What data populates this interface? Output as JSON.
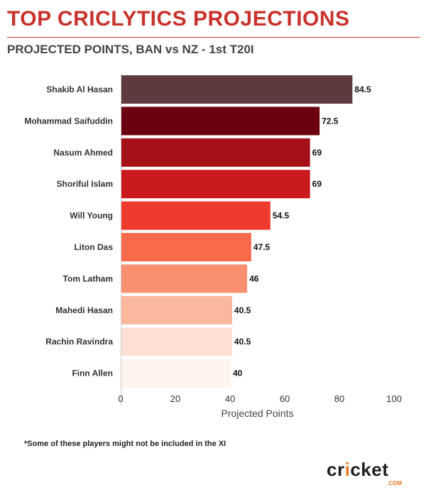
{
  "header": {
    "title": "TOP CRICLYTICS PROJECTIONS",
    "subtitle": "PROJECTED POINTS, BAN vs NZ - 1st T20I"
  },
  "footnote": "*Some of these players might not be included in the XI",
  "logo": {
    "text_before": "cr",
    "text_dot": "i",
    "text_after": "cket",
    "domain": ".COM"
  },
  "chart_data": {
    "type": "bar",
    "orientation": "horizontal",
    "categories": [
      "Shakib Al Hasan",
      "Mohammad Saifuddin",
      "Nasum Ahmed",
      "Shoriful Islam",
      "Will Young",
      "Liton Das",
      "Tom Latham",
      "Mahedi Hasan",
      "Rachin Ravindra",
      "Finn Allen"
    ],
    "values": [
      84.5,
      72.5,
      69,
      69,
      54.5,
      47.5,
      46,
      40.5,
      40.5,
      40
    ],
    "data_labels": [
      "84.5",
      "72.5",
      "69",
      "69",
      "54.5",
      "47.5",
      "46",
      "40.5",
      "40.5",
      "40"
    ],
    "colors": [
      "#5e3a3e",
      "#6b0010",
      "#a51019",
      "#cb1a1e",
      "#ee3b2d",
      "#f96a4b",
      "#fb9070",
      "#fcb79f",
      "#fde0d3",
      "#fff3ee"
    ],
    "xlabel": "Projected Points",
    "ylabel": "",
    "xlim": [
      0,
      100
    ],
    "xticks": [
      0,
      20,
      40,
      60,
      80,
      100
    ],
    "grid": false,
    "legend": "none"
  }
}
